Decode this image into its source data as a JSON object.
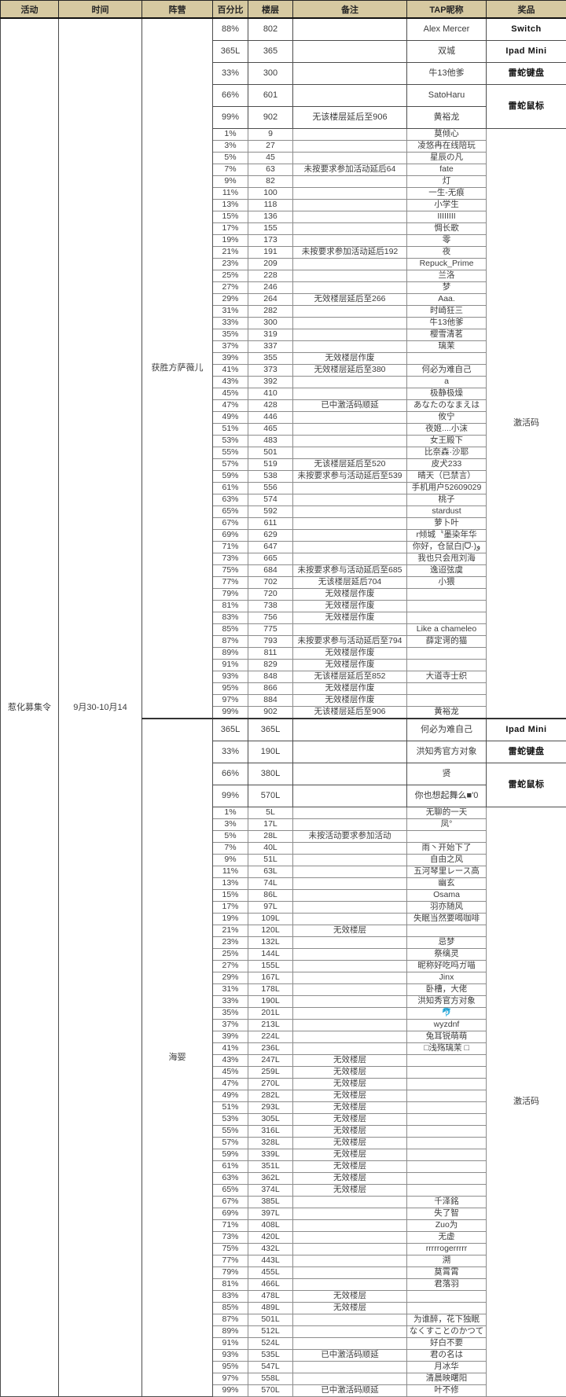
{
  "table": {
    "header_bg": "#d6c9a1",
    "columns": [
      "活动",
      "时间",
      "阵营",
      "百分比",
      "楼层",
      "备注",
      "TAP昵称",
      "奖品"
    ],
    "activity": "惹化募集令",
    "time": "9月30-10月14",
    "code_prize_label": "激活码",
    "sections": [
      {
        "faction": "获胜方萨薇儿",
        "prize_rows": [
          {
            "percent": "88%",
            "floor": "802",
            "note": "",
            "nickname": "Alex Mercer",
            "prize": "Switch",
            "prize_rowspan": 1
          },
          {
            "percent": "365L",
            "floor": "365",
            "note": "",
            "nickname": "双城",
            "prize": "Ipad Mini",
            "prize_rowspan": 1
          },
          {
            "percent": "33%",
            "floor": "300",
            "note": "",
            "nickname": "牛13他爹",
            "prize": "雷蛇键盘",
            "prize_rowspan": 1
          },
          {
            "percent": "66%",
            "floor": "601",
            "note": "",
            "nickname": "SatoHaru",
            "prize": "雷蛇鼠标",
            "prize_rowspan": 2
          },
          {
            "percent": "99%",
            "floor": "902",
            "note": "无该楼层延后至906",
            "nickname": "黄裕龙"
          }
        ],
        "rows": [
          [
            "1%",
            "9",
            "",
            "莫倾心"
          ],
          [
            "3%",
            "27",
            "",
            "凌悠冉在线陪玩"
          ],
          [
            "5%",
            "45",
            "",
            "星辰の凡"
          ],
          [
            "7%",
            "63",
            "未按要求参加活动延后64",
            "fate"
          ],
          [
            "9%",
            "82",
            "",
            "灯"
          ],
          [
            "11%",
            "100",
            "",
            "一生-无痕"
          ],
          [
            "13%",
            "118",
            "",
            "小学生"
          ],
          [
            "15%",
            "136",
            "",
            "IIIIIIII"
          ],
          [
            "17%",
            "155",
            "",
            "惆长歌"
          ],
          [
            "19%",
            "173",
            "",
            "零"
          ],
          [
            "21%",
            "191",
            "未按要求参加活动延后192",
            "夜"
          ],
          [
            "23%",
            "209",
            "",
            "Repuck_Prime"
          ],
          [
            "25%",
            "228",
            "",
            "兰洛"
          ],
          [
            "27%",
            "246",
            "",
            "梦"
          ],
          [
            "29%",
            "264",
            "无效楼层延后至266",
            "Aaa."
          ],
          [
            "31%",
            "282",
            "",
            "时崎狂三"
          ],
          [
            "33%",
            "300",
            "",
            "牛13他爹"
          ],
          [
            "35%",
            "319",
            "",
            "樱雪清茗"
          ],
          [
            "37%",
            "337",
            "",
            "璃茉"
          ],
          [
            "39%",
            "355",
            "无效楼层作废",
            ""
          ],
          [
            "41%",
            "373",
            "无效楼层延后至380",
            "何必为难自己"
          ],
          [
            "43%",
            "392",
            "",
            "a"
          ],
          [
            "45%",
            "410",
            "",
            "极静极燥"
          ],
          [
            "47%",
            "428",
            "已中激活码顺延",
            "あなたのなまえは"
          ],
          [
            "49%",
            "446",
            "",
            "攸宁"
          ],
          [
            "51%",
            "465",
            "",
            "夜姬....小沫"
          ],
          [
            "53%",
            "483",
            "",
            "女王殿下"
          ],
          [
            "55%",
            "501",
            "",
            "比奈森·沙耶"
          ],
          [
            "57%",
            "519",
            "无该楼层延后至520",
            "皮犬233"
          ],
          [
            "59%",
            "538",
            "未按要求参与活动延后至539",
            "晴天（已禁言）"
          ],
          [
            "61%",
            "556",
            "",
            "手机用户52609029"
          ],
          [
            "63%",
            "574",
            "",
            "桃子"
          ],
          [
            "65%",
            "592",
            "",
            "stardust"
          ],
          [
            "67%",
            "611",
            "",
            "萝卜叶"
          ],
          [
            "69%",
            "629",
            "",
            "r倾城〝墨染年华"
          ],
          [
            "71%",
            "647",
            "",
            "你好，仓鼠白|ᗜ·)ﻭ"
          ],
          [
            "73%",
            "665",
            "",
            "我也只会甩刘海"
          ],
          [
            "75%",
            "684",
            "未按要求参与活动延后至685",
            "逸迢弦虞"
          ],
          [
            "77%",
            "702",
            "无该楼层延后704",
            "小猥"
          ],
          [
            "79%",
            "720",
            "无效楼层作废",
            ""
          ],
          [
            "81%",
            "738",
            "无效楼层作废",
            ""
          ],
          [
            "83%",
            "756",
            "无效楼层作废",
            ""
          ],
          [
            "85%",
            "775",
            "",
            "Like a chameleo"
          ],
          [
            "87%",
            "793",
            "未按要求参与活动延后至794",
            "薛定谔的猫"
          ],
          [
            "89%",
            "811",
            "无效楼层作废",
            ""
          ],
          [
            "91%",
            "829",
            "无效楼层作废",
            ""
          ],
          [
            "93%",
            "848",
            "无该楼层延后至852",
            "大道寺士织"
          ],
          [
            "95%",
            "866",
            "无效楼层作废",
            ""
          ],
          [
            "97%",
            "884",
            "无效楼层作废",
            ""
          ],
          [
            "99%",
            "902",
            "无该楼层延后至906",
            "黄裕龙"
          ]
        ]
      },
      {
        "faction": "海婴",
        "prize_rows": [
          {
            "percent": "365L",
            "floor": "365L",
            "note": "",
            "nickname": "何必为难自己",
            "prize": "Ipad Mini",
            "prize_rowspan": 1
          },
          {
            "percent": "33%",
            "floor": "190L",
            "note": "",
            "nickname": "洪知秀官方对象",
            "prize": "雷蛇键盘",
            "prize_rowspan": 1
          },
          {
            "percent": "66%",
            "floor": "380L",
            "note": "",
            "nickname": "贤",
            "prize": "雷蛇鼠标",
            "prize_rowspan": 2
          },
          {
            "percent": "99%",
            "floor": "570L",
            "note": "",
            "nickname": "你也想起舞么■'0"
          }
        ],
        "rows": [
          [
            "1%",
            "5L",
            "",
            "无聊的一天"
          ],
          [
            "3%",
            "17L",
            "",
            "凤°"
          ],
          [
            "5%",
            "28L",
            "未按活动要求参加活动",
            ""
          ],
          [
            "7%",
            "40L",
            "",
            "雨丶开始下了"
          ],
          [
            "9%",
            "51L",
            "",
            "自由之风"
          ],
          [
            "11%",
            "63L",
            "",
            "五河琴里レース高"
          ],
          [
            "13%",
            "74L",
            "",
            "幽玄"
          ],
          [
            "15%",
            "86L",
            "",
            "Osama"
          ],
          [
            "17%",
            "97L",
            "",
            "羽亦随风"
          ],
          [
            "19%",
            "109L",
            "",
            "失眠当然要喝咖啡"
          ],
          [
            "21%",
            "120L",
            "无效楼层",
            ""
          ],
          [
            "23%",
            "132L",
            "",
            "忌梦"
          ],
          [
            "25%",
            "144L",
            "",
            "祭缡灵"
          ],
          [
            "27%",
            "155L",
            "",
            "昵称好吃吗ガ喵"
          ],
          [
            "29%",
            "167L",
            "",
            "Jinx"
          ],
          [
            "31%",
            "178L",
            "",
            "卧槽，大佬"
          ],
          [
            "33%",
            "190L",
            "",
            "洪知秀官方对象"
          ],
          [
            "35%",
            "201L",
            "",
            "🐬"
          ],
          [
            "37%",
            "213L",
            "",
            "wyzdnf"
          ],
          [
            "39%",
            "224L",
            "",
            "兔耳锐萌萌"
          ],
          [
            "41%",
            "236L",
            "",
            "□浅殇璃茉 □"
          ],
          [
            "43%",
            "247L",
            "无效楼层",
            ""
          ],
          [
            "45%",
            "259L",
            "无效楼层",
            ""
          ],
          [
            "47%",
            "270L",
            "无效楼层",
            ""
          ],
          [
            "49%",
            "282L",
            "无效楼层",
            ""
          ],
          [
            "51%",
            "293L",
            "无效楼层",
            ""
          ],
          [
            "53%",
            "305L",
            "无效楼层",
            ""
          ],
          [
            "55%",
            "316L",
            "无效楼层",
            ""
          ],
          [
            "57%",
            "328L",
            "无效楼层",
            ""
          ],
          [
            "59%",
            "339L",
            "无效楼层",
            ""
          ],
          [
            "61%",
            "351L",
            "无效楼层",
            ""
          ],
          [
            "63%",
            "362L",
            "无效楼层",
            ""
          ],
          [
            "65%",
            "374L",
            "无效楼层",
            ""
          ],
          [
            "67%",
            "385L",
            "",
            "千泽銘"
          ],
          [
            "69%",
            "397L",
            "",
            "失了智"
          ],
          [
            "71%",
            "408L",
            "",
            "Zuo为"
          ],
          [
            "73%",
            "420L",
            "",
            "无虚"
          ],
          [
            "75%",
            "432L",
            "",
            "rrrrrogerrrrr"
          ],
          [
            "77%",
            "443L",
            "",
            "溯"
          ],
          [
            "79%",
            "455L",
            "",
            "莫霄霄"
          ],
          [
            "81%",
            "466L",
            "",
            "君落羽"
          ],
          [
            "83%",
            "478L",
            "无效楼层",
            ""
          ],
          [
            "85%",
            "489L",
            "无效楼层",
            ""
          ],
          [
            "87%",
            "501L",
            "",
            "为谁醉，花下独眠"
          ],
          [
            "89%",
            "512L",
            "",
            "なくすことのかつて"
          ],
          [
            "91%",
            "524L",
            "",
            "好白不要"
          ],
          [
            "93%",
            "535L",
            "已中激活码顺延",
            "君の名は"
          ],
          [
            "95%",
            "547L",
            "",
            "月冰华"
          ],
          [
            "97%",
            "558L",
            "",
            "清晨映曙阳"
          ],
          [
            "99%",
            "570L",
            "已中激活码顺延",
            "叶不修"
          ]
        ]
      }
    ]
  }
}
